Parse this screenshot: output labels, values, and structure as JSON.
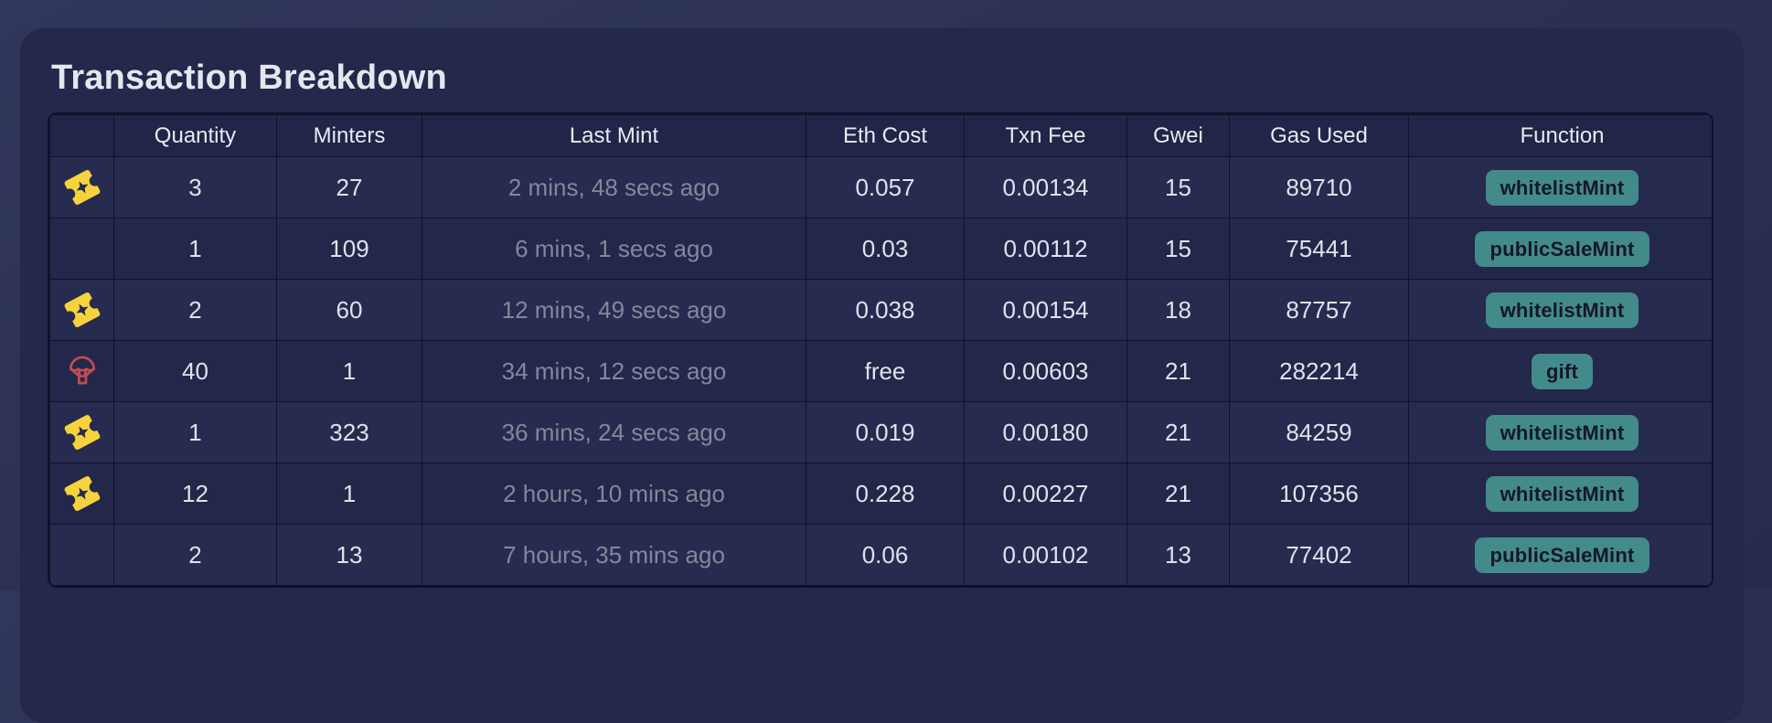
{
  "page": {
    "title": "Transaction Breakdown"
  },
  "colors": {
    "page_bg": "#2c3053",
    "card_bg": "#24284a",
    "grid_border": "#10122a",
    "header_text": "#e9eaf1",
    "cell_text": "#e0e2eb",
    "muted_text": "#84879b",
    "badge_bg": "#438a8b",
    "badge_text": "#14172b",
    "ticket_icon_color": "#f6d33c",
    "parachute_icon_color": "#c04d50"
  },
  "table": {
    "columns": [
      {
        "key": "icon",
        "label": ""
      },
      {
        "key": "quantity",
        "label": "Quantity"
      },
      {
        "key": "minters",
        "label": "Minters"
      },
      {
        "key": "last_mint",
        "label": "Last Mint"
      },
      {
        "key": "eth_cost",
        "label": "Eth Cost"
      },
      {
        "key": "txn_fee",
        "label": "Txn Fee"
      },
      {
        "key": "gwei",
        "label": "Gwei"
      },
      {
        "key": "gas_used",
        "label": "Gas Used"
      },
      {
        "key": "function",
        "label": "Function"
      }
    ],
    "rows": [
      {
        "icon": "ticket",
        "quantity": "3",
        "minters": "27",
        "last_mint": "2 mins, 48 secs ago",
        "eth_cost": "0.057",
        "txn_fee": "0.00134",
        "gwei": "15",
        "gas_used": "89710",
        "function": "whitelistMint"
      },
      {
        "icon": "",
        "quantity": "1",
        "minters": "109",
        "last_mint": "6 mins, 1 secs ago",
        "eth_cost": "0.03",
        "txn_fee": "0.00112",
        "gwei": "15",
        "gas_used": "75441",
        "function": "publicSaleMint"
      },
      {
        "icon": "ticket",
        "quantity": "2",
        "minters": "60",
        "last_mint": "12 mins, 49 secs ago",
        "eth_cost": "0.038",
        "txn_fee": "0.00154",
        "gwei": "18",
        "gas_used": "87757",
        "function": "whitelistMint"
      },
      {
        "icon": "parachute",
        "quantity": "40",
        "minters": "1",
        "last_mint": "34 mins, 12 secs ago",
        "eth_cost": "free",
        "txn_fee": "0.00603",
        "gwei": "21",
        "gas_used": "282214",
        "function": "gift"
      },
      {
        "icon": "ticket",
        "quantity": "1",
        "minters": "323",
        "last_mint": "36 mins, 24 secs ago",
        "eth_cost": "0.019",
        "txn_fee": "0.00180",
        "gwei": "21",
        "gas_used": "84259",
        "function": "whitelistMint"
      },
      {
        "icon": "ticket",
        "quantity": "12",
        "minters": "1",
        "last_mint": "2 hours, 10 mins ago",
        "eth_cost": "0.228",
        "txn_fee": "0.00227",
        "gwei": "21",
        "gas_used": "107356",
        "function": "whitelistMint"
      },
      {
        "icon": "",
        "quantity": "2",
        "minters": "13",
        "last_mint": "7 hours, 35 mins ago",
        "eth_cost": "0.06",
        "txn_fee": "0.00102",
        "gwei": "13",
        "gas_used": "77402",
        "function": "publicSaleMint"
      }
    ]
  }
}
